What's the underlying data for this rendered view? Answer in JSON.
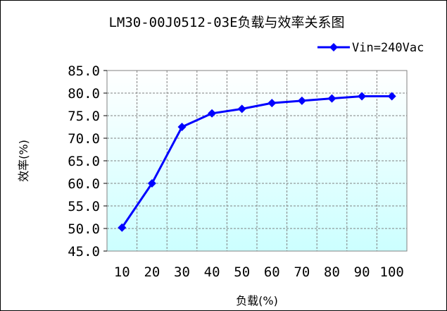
{
  "chart_data": {
    "type": "line",
    "title": "LM30-00J0512-03E负载与效率关系图",
    "xlabel": "负载(%)",
    "ylabel": "效率(%)",
    "x": [
      10,
      20,
      30,
      40,
      50,
      60,
      70,
      80,
      90,
      100
    ],
    "x_tick_labels": [
      "10",
      "20",
      "30",
      "40",
      "50",
      "60",
      "70",
      "80",
      "90",
      "100"
    ],
    "y_tick_labels": [
      "85.0",
      "80.0",
      "75.0",
      "70.0",
      "65.0",
      "60.0",
      "55.0",
      "50.0",
      "45.0"
    ],
    "ylim": [
      45,
      85
    ],
    "y_step": 5,
    "grid": true,
    "legend_position": "top-right",
    "series": [
      {
        "name": "Vin=240Vac",
        "color": "#0000FF",
        "marker": "diamond",
        "values": [
          50.2,
          60.0,
          72.5,
          75.5,
          76.5,
          77.8,
          78.3,
          78.8,
          79.3,
          79.3
        ]
      }
    ],
    "plot_background_gradient": [
      "#ffffff",
      "#ccffff"
    ]
  }
}
